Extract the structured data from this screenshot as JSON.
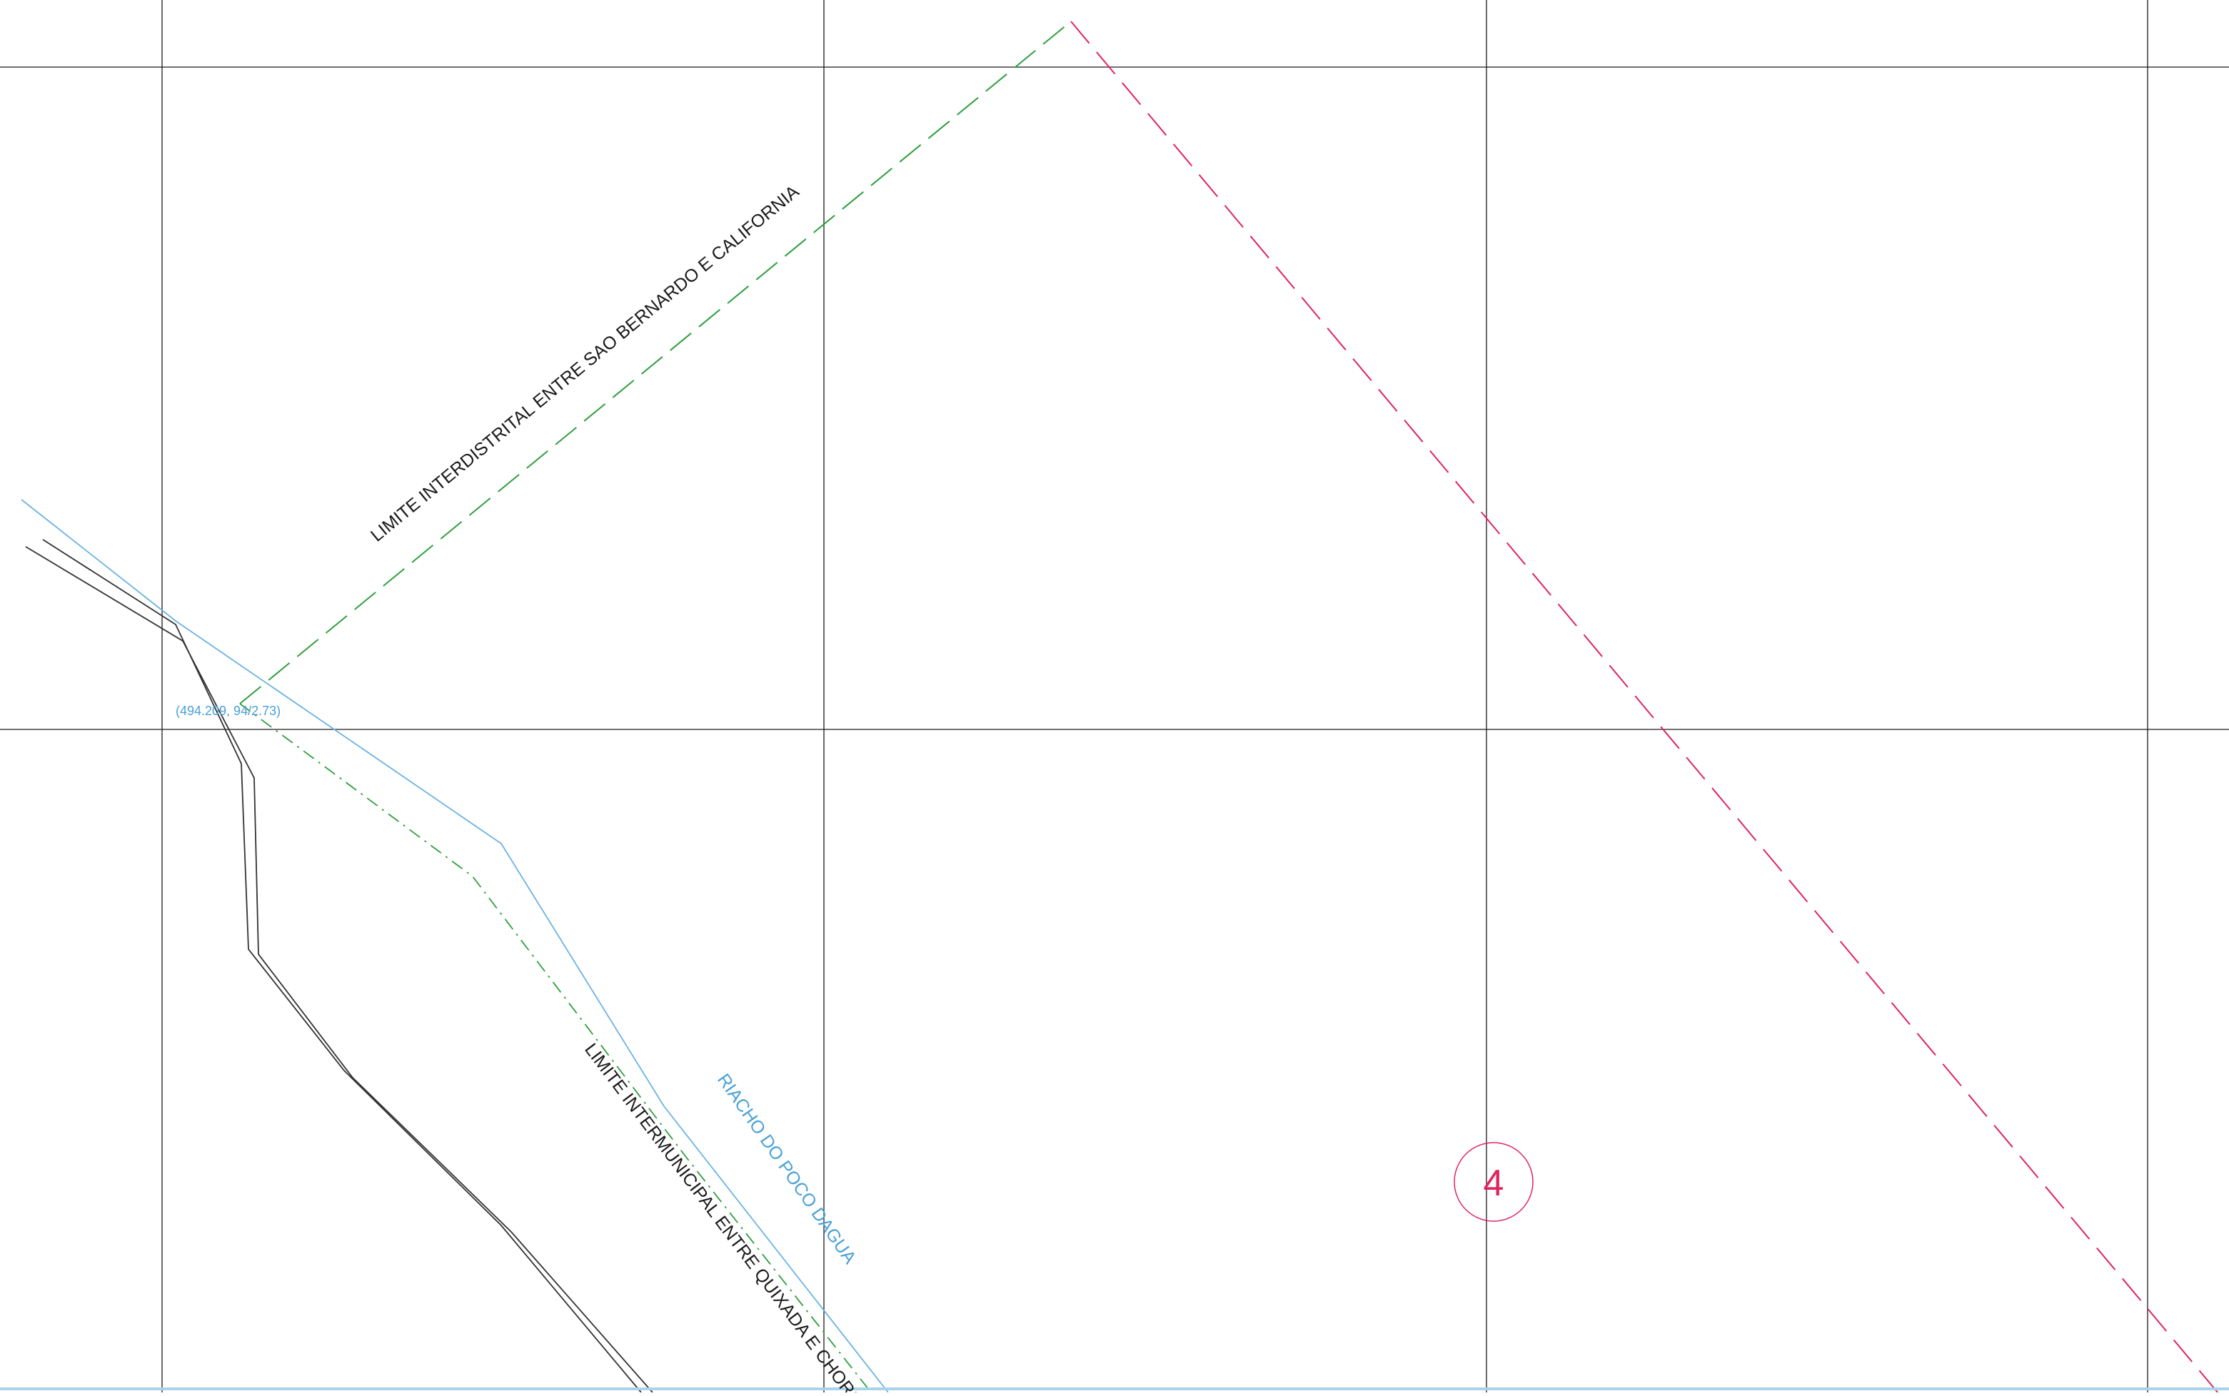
{
  "map": {
    "labels": {
      "interdistrital": "LIMITE INTERDISTRITAL ENTRE SAO BERNARDO E CALIFORNIA",
      "intermunicipal": "LIMITE INTERMUNICIPAL ENTRE QUIXADA E CHORO",
      "riacho": "RIACHO DO POCO DAGUA",
      "coordinate": "(494.209, 94/2.73)",
      "sheet_marker": "4"
    },
    "colors": {
      "grid": "#1a1a1a",
      "road": "#333333",
      "river": "#6bb3e0",
      "district_limit": "#2e9e3e",
      "municipal_limit": "#2e9e3e",
      "boundary": "#e0245e",
      "marker": "#e0245e",
      "bottom_band": "#a9d3ea"
    }
  }
}
